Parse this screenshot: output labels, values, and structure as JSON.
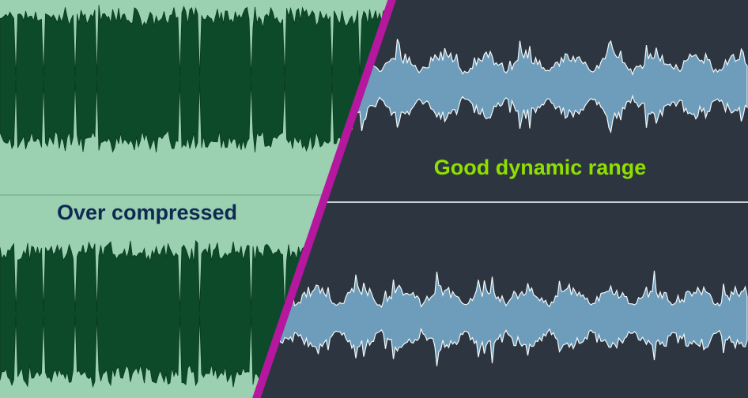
{
  "labels": {
    "left": "Over compressed",
    "right": "Good dynamic range"
  }
}
